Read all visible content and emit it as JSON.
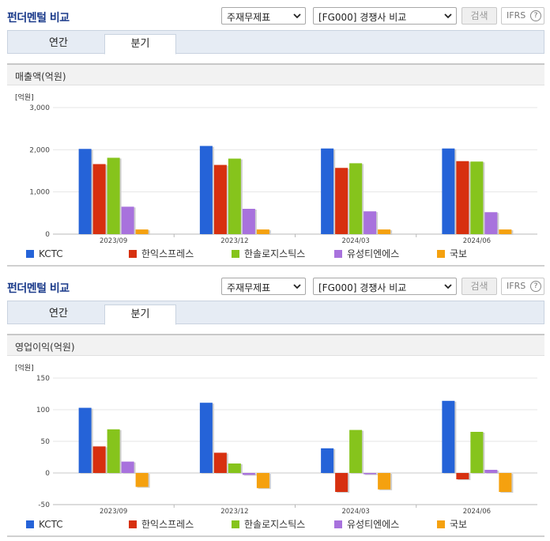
{
  "panels": [
    {
      "header": {
        "title": "펀더멘털 비교",
        "statement_select": "주재무제표",
        "compare_select": "[FG000] 경쟁사 비교",
        "search_label": "검색",
        "ifrs_label": "IFRS",
        "help_glyph": "?"
      },
      "tabs": [
        "연간",
        "분기"
      ],
      "active_tab": "분기",
      "section_title": "매출액(억원)"
    },
    {
      "header": {
        "title": "펀더멘털 비교",
        "statement_select": "주재무제표",
        "compare_select": "[FG000] 경쟁사 비교",
        "search_label": "검색",
        "ifrs_label": "IFRS",
        "help_glyph": "?"
      },
      "tabs": [
        "연간",
        "분기"
      ],
      "active_tab": "분기",
      "section_title": "영업이익(억원)"
    }
  ],
  "icons": {
    "select_arrow": "chevron-down-icon",
    "help": "question-circle-icon"
  },
  "colors": {
    "title": "#1a3a8a",
    "accent_tab_bg": "#e6ecf4"
  },
  "chart_data": [
    {
      "type": "bar",
      "unit_label": "[억원]",
      "categories": [
        "2023/09",
        "2023/12",
        "2024/03",
        "2024/06"
      ],
      "yticks": [
        "3,000",
        "2,000",
        "1,000",
        "0"
      ],
      "ytick_values": [
        3000,
        2000,
        1000,
        0
      ],
      "ylim": [
        0,
        3000
      ],
      "grid": true,
      "legend_position": "bottom",
      "series": [
        {
          "name": "KCTC",
          "color": "#2563d8",
          "values": [
            2020,
            2090,
            2030,
            2030
          ]
        },
        {
          "name": "한익스프레스",
          "color": "#d7300f",
          "values": [
            1660,
            1640,
            1570,
            1730
          ]
        },
        {
          "name": "한솔로지스틱스",
          "color": "#86c41c",
          "values": [
            1810,
            1790,
            1680,
            1720
          ]
        },
        {
          "name": "유성티엔에스",
          "color": "#a872dd",
          "values": [
            650,
            600,
            540,
            520
          ]
        },
        {
          "name": "국보",
          "color": "#f5a10f",
          "values": [
            110,
            110,
            110,
            110
          ]
        }
      ]
    },
    {
      "type": "bar",
      "unit_label": "[억원]",
      "categories": [
        "2023/09",
        "2023/12",
        "2024/03",
        "2024/06"
      ],
      "yticks": [
        "150",
        "100",
        "50",
        "0",
        "-50"
      ],
      "ytick_values": [
        150,
        100,
        50,
        0,
        -50
      ],
      "ylim": [
        -50,
        150
      ],
      "grid": true,
      "legend_position": "bottom",
      "series": [
        {
          "name": "KCTC",
          "color": "#2563d8",
          "values": [
            103,
            111,
            39,
            114
          ]
        },
        {
          "name": "한익스프레스",
          "color": "#d7300f",
          "values": [
            42,
            32,
            -30,
            -10
          ]
        },
        {
          "name": "한솔로지스틱스",
          "color": "#86c41c",
          "values": [
            69,
            15,
            68,
            65
          ]
        },
        {
          "name": "유성티엔에스",
          "color": "#a872dd",
          "values": [
            18,
            -3,
            -2,
            5
          ]
        },
        {
          "name": "국보",
          "color": "#f5a10f",
          "values": [
            -22,
            -24,
            -26,
            -30
          ]
        }
      ]
    }
  ]
}
